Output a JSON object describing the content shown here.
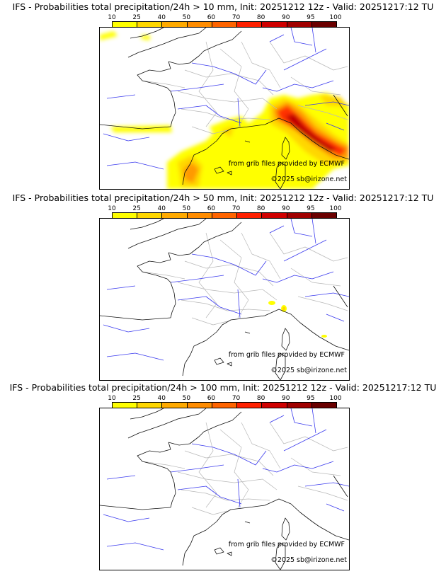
{
  "colorbar": {
    "ticks": [
      "10",
      "25",
      "40",
      "50",
      "60",
      "70",
      "80",
      "90",
      "95",
      "100"
    ],
    "colors": [
      "#ffff00",
      "#ffd700",
      "#ffaa00",
      "#ff8c00",
      "#ff6400",
      "#ff2000",
      "#d00000",
      "#a00000",
      "#6a0000"
    ]
  },
  "panels": [
    {
      "title": "IFS - Probabilities total precipitation/24h > 10 mm, Init: 20251212 12z - Valid: 20251217:12 TU",
      "credit_source": "from grib files provided by ECMWF",
      "credit_copyright": "©2025 sb@irizone.net"
    },
    {
      "title": "IFS - Probabilities total precipitation/24h > 50 mm, Init: 20251212 12z - Valid: 20251217:12 TU",
      "credit_source": "from grib files provided by ECMWF",
      "credit_copyright": "©2025 sb@irizone.net"
    },
    {
      "title": "IFS - Probabilities total precipitation/24h > 100 mm, Init: 20251212 12z - Valid: 20251217:12 TU",
      "credit_source": "from grib files provided by ECMWF",
      "credit_copyright": "©2025 sb@irizone.net"
    }
  ]
}
